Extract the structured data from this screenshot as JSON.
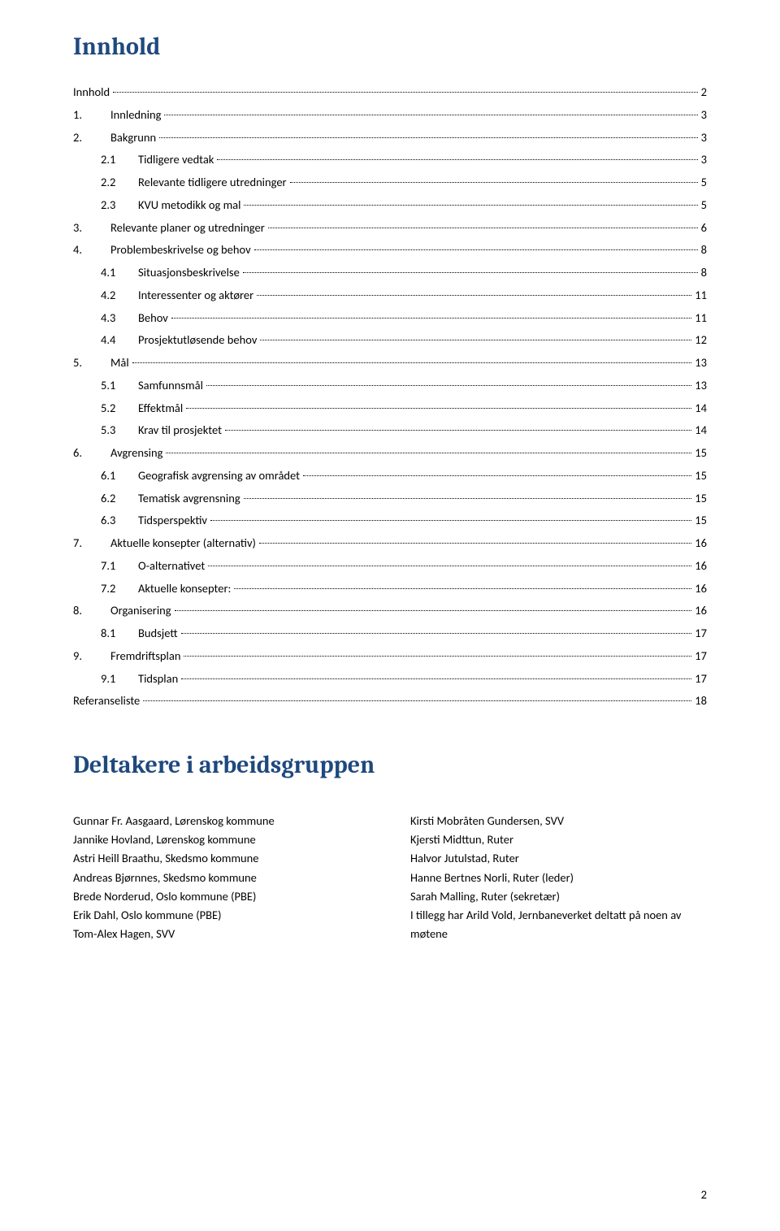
{
  "colors": {
    "heading": "#1f497d",
    "text": "#000000",
    "background": "#ffffff"
  },
  "headings": {
    "toc": "Innhold",
    "participants": "Deltakere i arbeidsgruppen"
  },
  "page_number": "2",
  "toc": [
    {
      "level": 0,
      "num": "",
      "title": "Innhold",
      "page": "2"
    },
    {
      "level": 1,
      "num": "1.",
      "title": "Innledning",
      "page": "3"
    },
    {
      "level": 1,
      "num": "2.",
      "title": "Bakgrunn",
      "page": "3"
    },
    {
      "level": 2,
      "num": "2.1",
      "title": "Tidligere vedtak",
      "page": "3"
    },
    {
      "level": 2,
      "num": "2.2",
      "title": "Relevante tidligere utredninger",
      "page": "5"
    },
    {
      "level": 2,
      "num": "2.3",
      "title": "KVU metodikk og mal",
      "page": "5"
    },
    {
      "level": 1,
      "num": "3.",
      "title": "Relevante planer og utredninger",
      "page": "6"
    },
    {
      "level": 1,
      "num": "4.",
      "title": "Problembeskrivelse og behov",
      "page": "8"
    },
    {
      "level": 2,
      "num": "4.1",
      "title": "Situasjonsbeskrivelse",
      "page": "8"
    },
    {
      "level": 2,
      "num": "4.2",
      "title": "Interessenter og aktører",
      "page": "11"
    },
    {
      "level": 2,
      "num": "4.3",
      "title": "Behov",
      "page": "11"
    },
    {
      "level": 2,
      "num": "4.4",
      "title": "Prosjektutløsende behov",
      "page": "12"
    },
    {
      "level": 1,
      "num": "5.",
      "title": "Mål",
      "page": "13"
    },
    {
      "level": 2,
      "num": "5.1",
      "title": "Samfunnsmål",
      "page": "13"
    },
    {
      "level": 2,
      "num": "5.2",
      "title": "Effektmål",
      "page": "14"
    },
    {
      "level": 2,
      "num": "5.3",
      "title": "Krav til prosjektet",
      "page": "14"
    },
    {
      "level": 1,
      "num": "6.",
      "title": "Avgrensing",
      "page": "15"
    },
    {
      "level": 2,
      "num": "6.1",
      "title": "Geografisk avgrensing av området",
      "page": "15"
    },
    {
      "level": 2,
      "num": "6.2",
      "title": "Tematisk avgrensning",
      "page": "15"
    },
    {
      "level": 2,
      "num": "6.3",
      "title": "Tidsperspektiv",
      "page": "15"
    },
    {
      "level": 1,
      "num": "7.",
      "title": "Aktuelle konsepter (alternativ)",
      "page": "16"
    },
    {
      "level": 2,
      "num": "7.1",
      "title": "O-alternativet",
      "page": "16"
    },
    {
      "level": 2,
      "num": "7.2",
      "title": "Aktuelle konsepter:",
      "page": "16"
    },
    {
      "level": 1,
      "num": "8.",
      "title": "Organisering",
      "page": "16"
    },
    {
      "level": 2,
      "num": "8.1",
      "title": "Budsjett",
      "page": "17"
    },
    {
      "level": 1,
      "num": "9.",
      "title": "Fremdriftsplan",
      "page": "17"
    },
    {
      "level": 2,
      "num": "9.1",
      "title": "Tidsplan",
      "page": "17"
    },
    {
      "level": 0,
      "num": "",
      "title": "Referanseliste",
      "page": "18"
    }
  ],
  "participants": {
    "left": [
      "Gunnar Fr. Aasgaard, Lørenskog kommune",
      "Jannike Hovland, Lørenskog kommune",
      "Astri Heill Braathu, Skedsmo kommune",
      "Andreas Bjørnnes, Skedsmo kommune",
      "Brede Norderud, Oslo kommune (PBE)",
      "Erik Dahl, Oslo kommune (PBE)",
      "Tom-Alex Hagen, SVV"
    ],
    "right": [
      "Kirsti Mobråten Gundersen, SVV",
      "Kjersti Midttun, Ruter",
      "Halvor Jutulstad, Ruter",
      "Hanne Bertnes Norli, Ruter (leder)",
      "Sarah Malling, Ruter (sekretær)",
      "I tillegg har Arild Vold, Jernbaneverket deltatt på noen av møtene"
    ]
  }
}
